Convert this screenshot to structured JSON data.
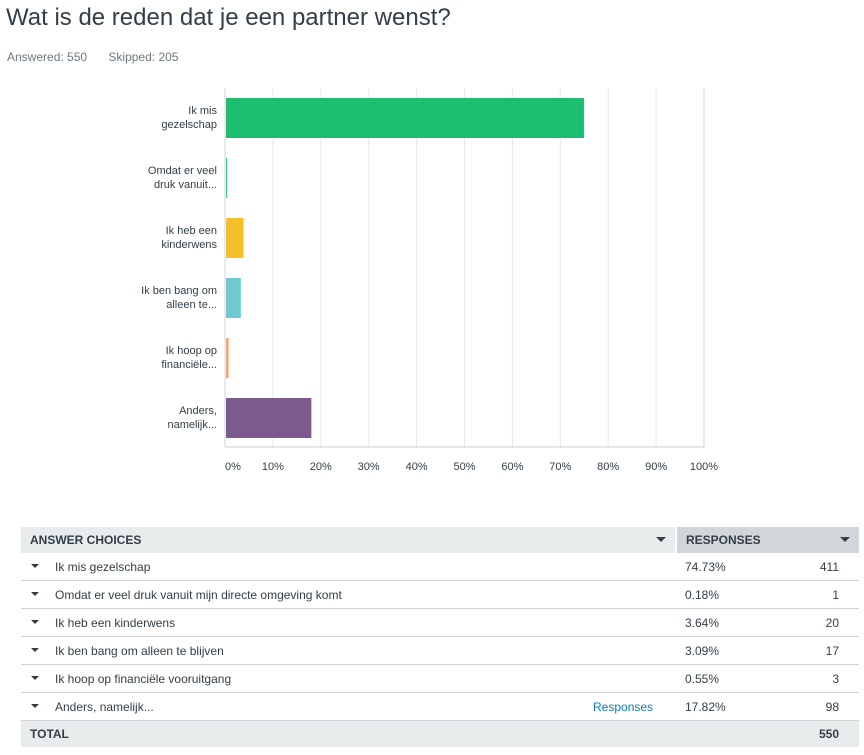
{
  "question": {
    "title": "Wat is de reden dat je een partner wenst?",
    "answered": "Answered: 550",
    "skipped": "Skipped: 205"
  },
  "chart_data": {
    "type": "bar",
    "orientation": "horizontal",
    "categories": [
      "Ik mis gezelschap",
      "Omdat er veel druk vanuit...",
      "Ik heb een kinderwens",
      "Ik ben bang om alleen te...",
      "Ik hoop op financiële...",
      "Anders, namelijk..."
    ],
    "category_lines": [
      [
        "Ik mis",
        "gezelschap"
      ],
      [
        "Omdat er veel",
        "druk vanuit..."
      ],
      [
        "Ik heb een",
        "kinderwens"
      ],
      [
        "Ik ben bang om",
        "alleen te..."
      ],
      [
        "Ik hoop op",
        "financiële..."
      ],
      [
        "Anders,",
        "namelijk..."
      ]
    ],
    "values": [
      74.73,
      0.18,
      3.64,
      3.09,
      0.55,
      17.82
    ],
    "colors": [
      "#1ebe71",
      "#1ebe71",
      "#f5bf2a",
      "#6fc9cf",
      "#e8a87c",
      "#7d5a8e"
    ],
    "xlim": [
      0,
      100
    ],
    "xticks": [
      "0%",
      "10%",
      "20%",
      "30%",
      "40%",
      "50%",
      "60%",
      "70%",
      "80%",
      "90%",
      "100%"
    ],
    "grid": true
  },
  "table": {
    "col_choices": "ANSWER CHOICES",
    "col_responses": "RESPONSES",
    "rows": [
      {
        "label": "Ik mis gezelschap",
        "link": "",
        "pct": "74.73%",
        "count": "411"
      },
      {
        "label": "Omdat er veel druk vanuit mijn directe omgeving komt",
        "link": "",
        "pct": "0.18%",
        "count": "1"
      },
      {
        "label": "Ik heb een kinderwens",
        "link": "",
        "pct": "3.64%",
        "count": "20"
      },
      {
        "label": "Ik ben bang om alleen te blijven",
        "link": "",
        "pct": "3.09%",
        "count": "17"
      },
      {
        "label": "Ik hoop op financiële vooruitgang",
        "link": "",
        "pct": "0.55%",
        "count": "3"
      },
      {
        "label": "Anders, namelijk...",
        "link": "Responses",
        "pct": "17.82%",
        "count": "98"
      }
    ],
    "total_label": "TOTAL",
    "total_count": "550"
  }
}
